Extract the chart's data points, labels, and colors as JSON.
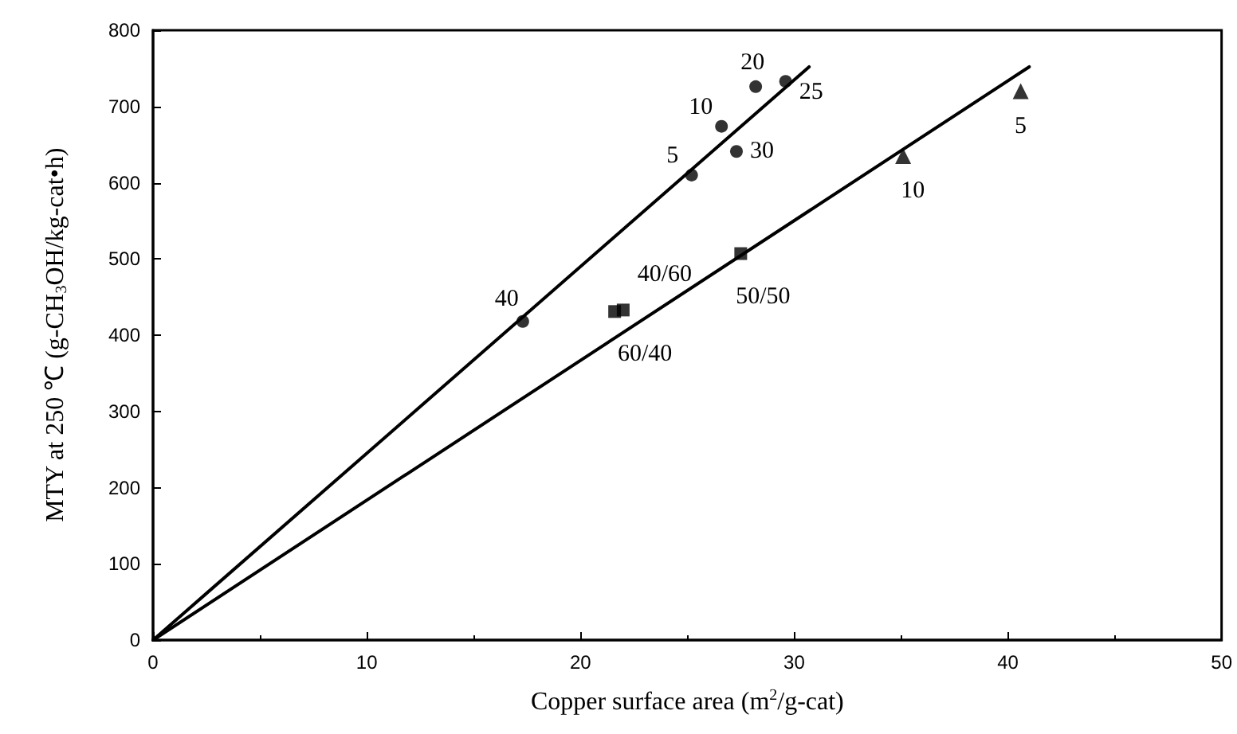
{
  "chart_data": {
    "type": "scatter",
    "xlabel": "Copper surface area (m$^{2}$/g-cat)",
    "ylabel": "MTY at 250 ℃ (g-CH$_{3}$OH/kg-cat•h)",
    "xlim": [
      0,
      50
    ],
    "xticks": [
      0,
      10,
      20,
      30,
      40,
      50
    ],
    "ylim": [
      0,
      800
    ],
    "yticks": [
      0,
      100,
      200,
      300,
      400,
      500,
      600,
      700,
      800
    ],
    "grid": false,
    "series": [
      {
        "marker": "circle",
        "color": "#000000",
        "x": [
          17.3,
          25.2,
          26.6,
          28.2,
          29.6,
          27.3
        ],
        "values": [
          418,
          610,
          674,
          726,
          733,
          641
        ]
      },
      {
        "marker": "square",
        "color": "#000000",
        "x": [
          21.6,
          22.0,
          27.5
        ],
        "values": [
          431,
          433,
          507
        ]
      },
      {
        "marker": "triangle",
        "color": "#000000",
        "x": [
          35.1,
          40.6
        ],
        "values": [
          635,
          720
        ]
      },
      {
        "type": "line",
        "marker": "none",
        "line_style": "solid",
        "color": "#000000",
        "x": [
          0,
          30.7
        ],
        "values": [
          0,
          752
        ]
      },
      {
        "type": "line",
        "marker": "none",
        "line_style": "solid",
        "color": "#000000",
        "x": [
          0,
          41
        ],
        "values": [
          0,
          752
        ]
      }
    ],
    "annotations": [
      {
        "text": "40",
        "x": 17.3,
        "y": 418
      },
      {
        "text": "5",
        "x": 25.2,
        "y": 610
      },
      {
        "text": "10",
        "x": 26.6,
        "y": 674
      },
      {
        "text": "20",
        "x": 28.2,
        "y": 726
      },
      {
        "text": "25",
        "x": 29.6,
        "y": 733
      },
      {
        "text": "30",
        "x": 27.3,
        "y": 641
      },
      {
        "text": "40/60",
        "x": 22.0,
        "y": 433
      },
      {
        "text": "60/40",
        "x": 21.6,
        "y": 431
      },
      {
        "text": "50/50",
        "x": 27.5,
        "y": 507
      },
      {
        "text": "10",
        "x": 35.1,
        "y": 635
      },
      {
        "text": "5",
        "x": 40.6,
        "y": 720
      }
    ]
  }
}
